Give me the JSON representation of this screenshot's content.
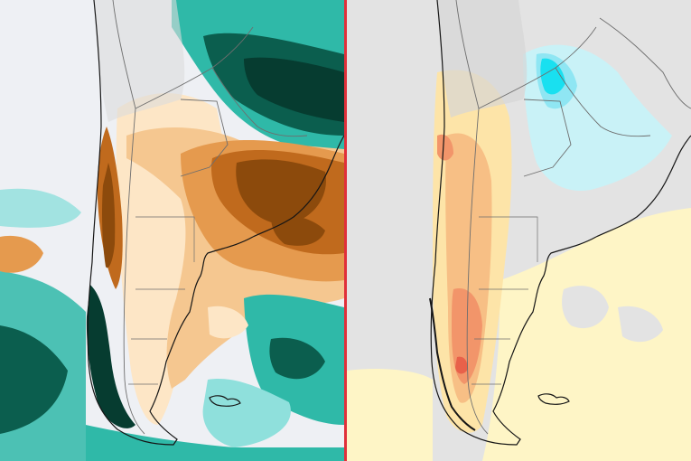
{
  "figure": {
    "panels": [
      {
        "id": "left",
        "field": "anomaly-brown-to-teal"
      },
      {
        "id": "right",
        "field": "anomaly-yellow-to-cyan"
      }
    ]
  },
  "colors": {
    "divider": "#e0303a",
    "background_left": "#eef0f4",
    "background_right": "#e3e3e3",
    "land_base": "#e7e7e7",
    "border_line": "#6e6e6e",
    "coast_line": "#151515",
    "left_scale": [
      "#8c4a0c",
      "#c06a1d",
      "#e59a4e",
      "#f5c790",
      "#fde6c6",
      "#f2f2f2",
      "#8fe0dc",
      "#2fb9a8",
      "#138a78",
      "#0b5e4e",
      "#063c30"
    ],
    "right_scale": [
      "#e8614a",
      "#f2956a",
      "#f7bf85",
      "#fde4a8",
      "#fef5c6",
      "#e3e3e3",
      "#c9f2f7",
      "#8fe6f3",
      "#19e0f0"
    ]
  }
}
